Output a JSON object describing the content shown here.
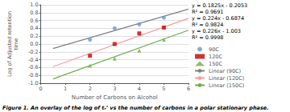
{
  "chart_data": {
    "type": "scatter",
    "xlabel": "Number of Carbons on Alcohol",
    "ylabel": "Log of Adjusted retention\ntime",
    "caption": "Figure 1. An overlay of the log of tᵣ’ vs the number of carbons in a polar stationary phase.",
    "annotations": [
      "y = 0.1825x - 0.2053",
      "R² = 0.9691",
      "y = 0.224x - 0.6874",
      "R² = 0.9824",
      "y = 0.226x - 1.003",
      "R² = 0.9998"
    ],
    "xlim": [
      0,
      6
    ],
    "xticks": [
      0,
      1,
      2,
      3,
      4,
      5,
      6
    ],
    "ylim": [
      -1.0,
      1.0
    ],
    "yticks": [
      {
        "value": -1.0,
        "label": "-1.0"
      },
      -0.8,
      -0.6,
      -0.4,
      -0.2,
      {
        "value": 0,
        "label": "0.0"
      },
      0.2,
      0.4,
      0.6,
      0.8,
      {
        "value": 1.0,
        "label": "1.0"
      }
    ],
    "grid": "y",
    "legend": "right",
    "series": [
      {
        "name": "90C",
        "type": "scatter",
        "marker": "circle",
        "color": "#5B9BD5",
        "x": [
          2,
          3,
          4,
          5
        ],
        "values": [
          0.11,
          0.4,
          0.5,
          0.67
        ]
      },
      {
        "name": "120C",
        "type": "scatter",
        "marker": "square",
        "color": "#C00000",
        "x": [
          2,
          3,
          4,
          5
        ],
        "values": [
          -0.3,
          0.0,
          0.27,
          0.42
        ]
      },
      {
        "name": "150C",
        "type": "scatter",
        "marker": "triangle",
        "color": "#70AD47",
        "x": [
          2,
          3,
          4,
          5
        ],
        "values": [
          -0.55,
          -0.37,
          -0.17,
          0.11
        ]
      },
      {
        "name": "Linear (90C)",
        "type": "line",
        "line_style": "solid",
        "color": "#808080",
        "x": [
          0.5,
          6
        ],
        "values": [
          -0.11405,
          0.8897
        ]
      },
      {
        "name": "Linear (120C)",
        "type": "line",
        "line_style": "solid",
        "color": "#FF9999",
        "x": [
          0.5,
          6
        ],
        "values": [
          -0.5754,
          0.6566
        ]
      },
      {
        "name": "Linear (150C)",
        "type": "line",
        "line_style": "solid",
        "color": "#70AD47",
        "x": [
          0.5,
          6
        ],
        "values": [
          -0.89,
          0.353
        ]
      }
    ]
  }
}
